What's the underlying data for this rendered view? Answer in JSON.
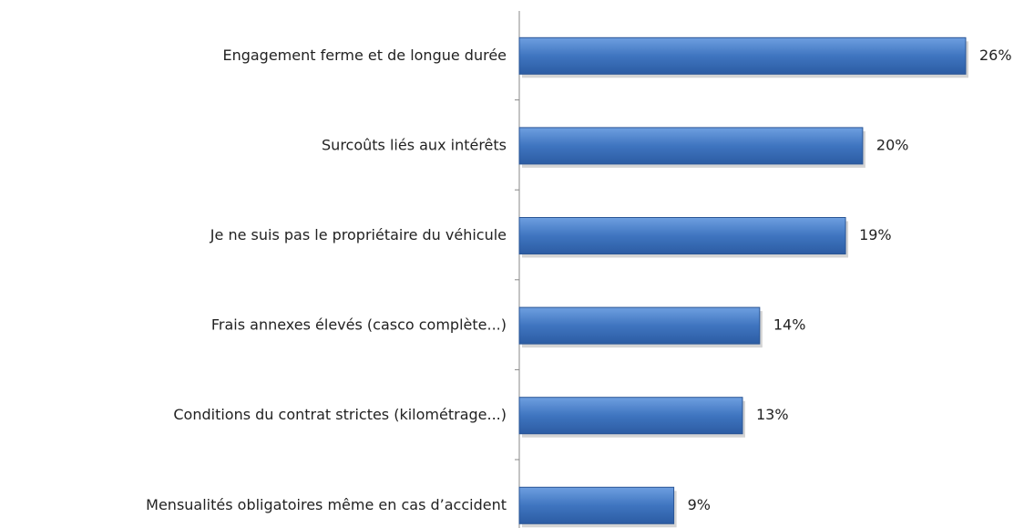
{
  "chart_data": {
    "type": "barh",
    "categories": [
      "Engagement ferme et de longue durée",
      "Surcoûts liés aux intérêts",
      "Je ne suis pas le propriétaire du véhicule",
      "Frais annexes élevés (casco complète...)",
      "Conditions du contrat strictes (kilométrage...)",
      "Mensualités obligatoires même en cas d’accident"
    ],
    "values": [
      26,
      20,
      19,
      14,
      13,
      9
    ],
    "value_labels": [
      "26%",
      "20%",
      "19%",
      "14%",
      "13%",
      "9%"
    ],
    "color": "#3f75c0"
  }
}
